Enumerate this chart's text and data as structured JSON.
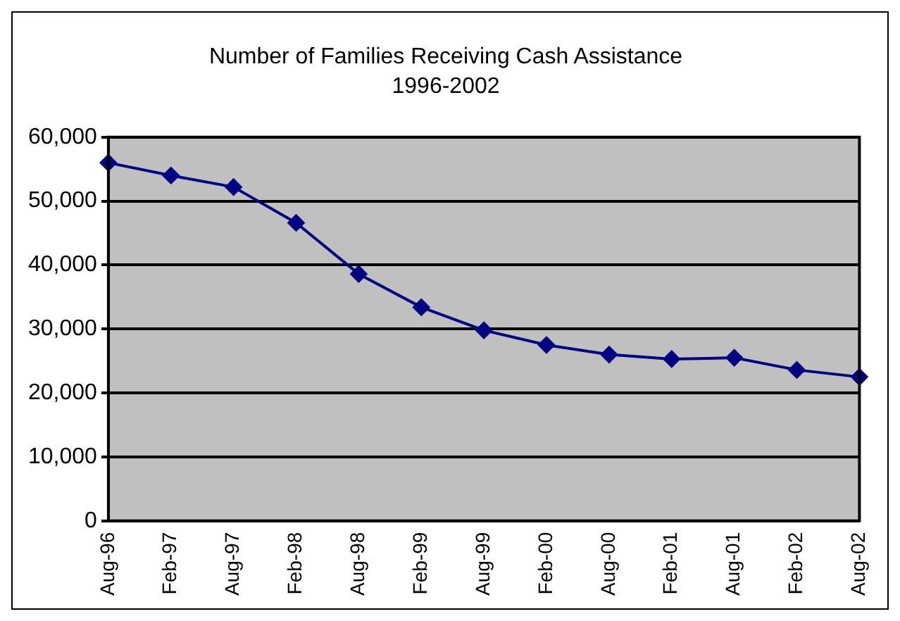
{
  "chart_data": {
    "type": "line",
    "title": "Number of Families Receiving Cash Assistance",
    "subtitle": "1996-2002",
    "categories": [
      "Aug-96",
      "Feb-97",
      "Aug-97",
      "Feb-98",
      "Aug-98",
      "Feb-99",
      "Aug-99",
      "Feb-00",
      "Aug-00",
      "Feb-01",
      "Aug-01",
      "Feb-02",
      "Aug-02"
    ],
    "series": [
      {
        "color": "#000080",
        "values": [
          56000,
          54000,
          52200,
          46600,
          38600,
          33400,
          29800,
          27500,
          26000,
          25300,
          25500,
          23600,
          22500
        ]
      }
    ],
    "ylim": [
      0,
      60000
    ],
    "yticks": [
      {
        "value": 0,
        "label": "0"
      },
      {
        "value": 10000,
        "label": "10,000"
      },
      {
        "value": 20000,
        "label": "20,000"
      },
      {
        "value": 30000,
        "label": "30,000"
      },
      {
        "value": 40000,
        "label": "40,000"
      },
      {
        "value": 50000,
        "label": "50,000"
      },
      {
        "value": 60000,
        "label": "60,000"
      }
    ],
    "grid": "y",
    "legend": false,
    "marker": "diamond",
    "line_style": "solid"
  }
}
